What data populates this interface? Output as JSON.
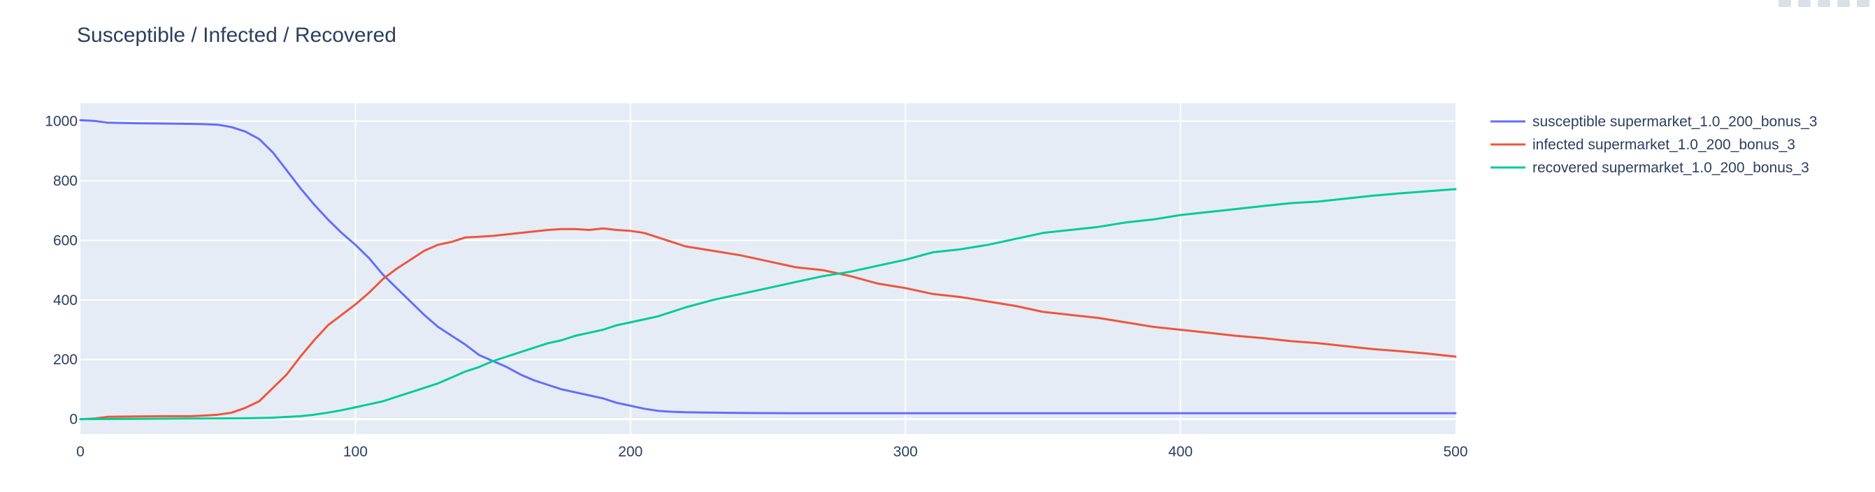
{
  "chart_data": {
    "type": "line",
    "title": "Susceptible / Infected / Recovered",
    "xlabel": "",
    "ylabel": "",
    "xlim": [
      0,
      500
    ],
    "ylim": [
      -50,
      1060
    ],
    "x_ticks": [
      0,
      100,
      200,
      300,
      400,
      500
    ],
    "y_ticks": [
      0,
      200,
      400,
      600,
      800,
      1000
    ],
    "grid": true,
    "legend_position": "right",
    "background": "#e5ecf6",
    "series": [
      {
        "name": "susceptible supermarket_1.0_200_bonus_3",
        "color": "#636efa",
        "x": [
          0,
          5,
          10,
          20,
          30,
          40,
          45,
          50,
          55,
          60,
          65,
          70,
          75,
          80,
          85,
          90,
          95,
          100,
          105,
          110,
          115,
          120,
          125,
          130,
          135,
          140,
          145,
          150,
          155,
          160,
          165,
          170,
          175,
          180,
          185,
          190,
          195,
          200,
          205,
          210,
          215,
          220,
          230,
          240,
          260,
          300,
          350,
          400,
          450,
          500
        ],
        "y": [
          1003,
          1001,
          995,
          993,
          992,
          991,
          990,
          988,
          980,
          965,
          940,
          895,
          835,
          775,
          720,
          670,
          625,
          585,
          540,
          485,
          440,
          395,
          350,
          310,
          280,
          250,
          215,
          195,
          175,
          150,
          130,
          115,
          100,
          90,
          80,
          70,
          55,
          45,
          35,
          28,
          25,
          23,
          22,
          21,
          20,
          20,
          20,
          20,
          20,
          20
        ]
      },
      {
        "name": "infected supermarket_1.0_200_bonus_3",
        "color": "#ef553b",
        "x": [
          0,
          5,
          10,
          20,
          30,
          40,
          45,
          50,
          55,
          60,
          65,
          70,
          75,
          80,
          85,
          90,
          95,
          100,
          105,
          110,
          115,
          120,
          125,
          130,
          135,
          140,
          145,
          150,
          155,
          160,
          165,
          170,
          175,
          180,
          185,
          190,
          195,
          200,
          205,
          210,
          215,
          220,
          230,
          240,
          250,
          260,
          270,
          280,
          290,
          300,
          310,
          320,
          330,
          340,
          350,
          360,
          370,
          380,
          390,
          400,
          410,
          420,
          430,
          440,
          450,
          460,
          470,
          480,
          490,
          500
        ],
        "y": [
          0,
          2,
          8,
          9,
          10,
          10,
          12,
          15,
          22,
          38,
          60,
          105,
          150,
          210,
          265,
          315,
          350,
          385,
          425,
          470,
          505,
          535,
          565,
          585,
          595,
          610,
          612,
          615,
          620,
          625,
          630,
          635,
          638,
          638,
          635,
          640,
          635,
          632,
          625,
          610,
          595,
          580,
          565,
          550,
          530,
          510,
          500,
          480,
          455,
          440,
          420,
          410,
          395,
          380,
          360,
          350,
          340,
          325,
          310,
          300,
          290,
          280,
          272,
          262,
          255,
          245,
          235,
          228,
          220,
          210
        ]
      },
      {
        "name": "recovered supermarket_1.0_200_bonus_3",
        "color": "#00cc96",
        "x": [
          0,
          20,
          40,
          60,
          70,
          80,
          85,
          90,
          95,
          100,
          105,
          110,
          115,
          120,
          125,
          130,
          135,
          140,
          145,
          150,
          155,
          160,
          165,
          170,
          175,
          180,
          185,
          190,
          195,
          200,
          205,
          210,
          215,
          220,
          230,
          240,
          250,
          260,
          270,
          280,
          290,
          300,
          310,
          320,
          330,
          340,
          350,
          360,
          370,
          380,
          390,
          400,
          410,
          420,
          430,
          440,
          450,
          460,
          470,
          480,
          490,
          500
        ],
        "y": [
          0,
          1,
          2,
          3,
          5,
          10,
          15,
          22,
          30,
          40,
          50,
          60,
          75,
          90,
          105,
          120,
          140,
          160,
          175,
          195,
          210,
          225,
          240,
          255,
          265,
          280,
          290,
          300,
          315,
          325,
          335,
          345,
          360,
          375,
          400,
          420,
          440,
          460,
          480,
          495,
          515,
          535,
          560,
          570,
          585,
          605,
          625,
          635,
          645,
          660,
          670,
          685,
          695,
          705,
          715,
          725,
          730,
          740,
          750,
          758,
          765,
          772
        ]
      }
    ]
  }
}
